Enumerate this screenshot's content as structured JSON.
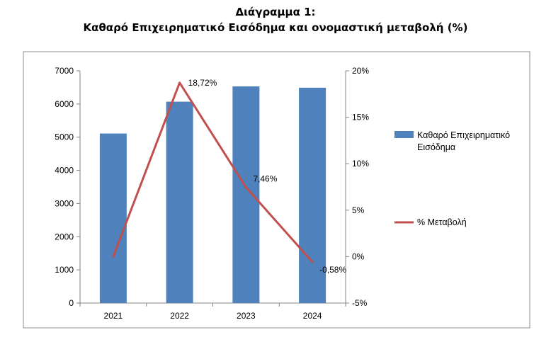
{
  "chart_data": {
    "type": "bar",
    "title": "Διάγραμμα 1:",
    "subtitle": "Καθαρό Επιχειρηματικό Εισόδημα και ονομαστική μεταβολή (%)",
    "categories": [
      "2021",
      "2022",
      "2023",
      "2024"
    ],
    "series": [
      {
        "name": "Καθαρό Επιχειρηματικό Εισόδημα",
        "legend_lines": [
          "Καθαρό Επιχειρηματικό",
          "Εισόδημα"
        ],
        "type": "bar",
        "axis": "left",
        "color": "#4F81BD",
        "values": [
          5110,
          6070,
          6530,
          6490
        ]
      },
      {
        "name": "% Μεταβολή",
        "legend_lines": [
          "% Μεταβολή"
        ],
        "type": "line",
        "axis": "right",
        "color": "#C0504D",
        "values": [
          0.0,
          18.72,
          7.46,
          -0.58
        ],
        "data_labels": [
          "",
          "18,72%",
          "7,46%",
          "-0,58%"
        ]
      }
    ],
    "y_left": {
      "min": 0,
      "max": 7000,
      "ticks": [
        "0",
        "1000",
        "2000",
        "3000",
        "4000",
        "5000",
        "6000",
        "7000"
      ]
    },
    "y_right": {
      "min": -5,
      "max": 20,
      "ticks": [
        "-5%",
        "0%",
        "5%",
        "10%",
        "15%",
        "20%"
      ]
    },
    "grid": false,
    "legend_position": "right"
  }
}
